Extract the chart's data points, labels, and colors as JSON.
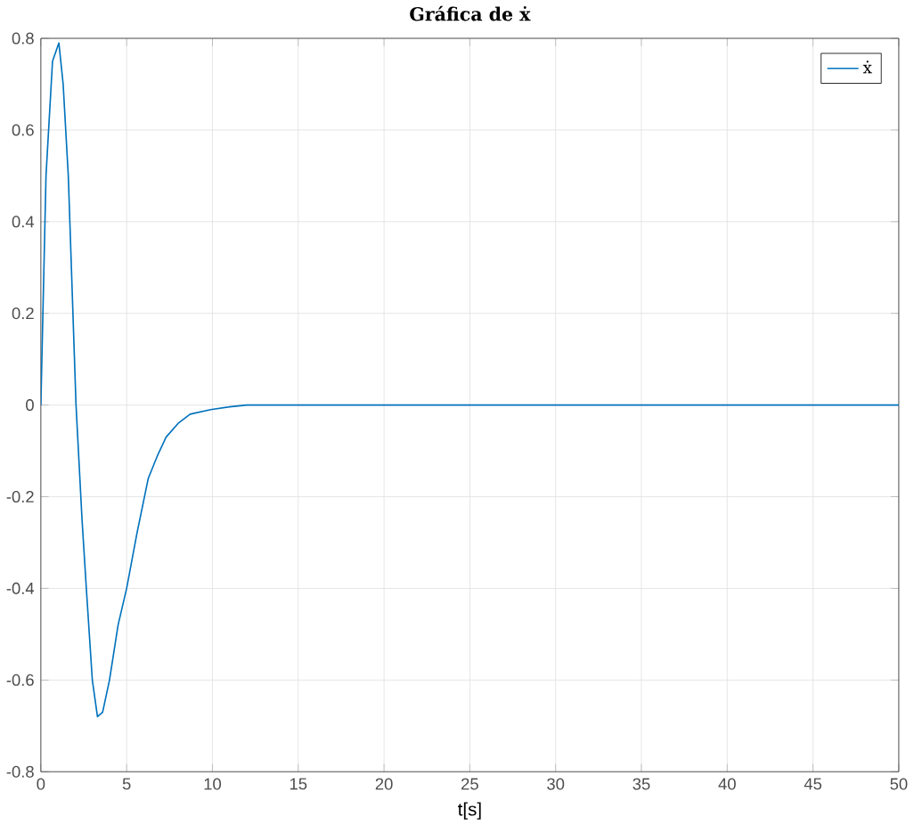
{
  "chart_data": {
    "type": "line",
    "title": "Gráfica de ẋ",
    "xlabel": "t[s]",
    "x": [
      0,
      0.3,
      0.68,
      1.05,
      1.3,
      1.6,
      2.05,
      2.4,
      2.65,
      3.0,
      3.3,
      3.6,
      4.0,
      4.5,
      5.0,
      5.6,
      6.26,
      6.8,
      7.3,
      8.0,
      8.7,
      9.9,
      11,
      12,
      15,
      20,
      30,
      40,
      50
    ],
    "series": [
      {
        "name": "ẋ",
        "color": "#0072bd",
        "values": [
          0,
          0.5,
          0.75,
          0.79,
          0.7,
          0.5,
          0,
          -0.25,
          -0.4,
          -0.6,
          -0.68,
          -0.67,
          -0.6,
          -0.48,
          -0.4,
          -0.28,
          -0.16,
          -0.11,
          -0.07,
          -0.04,
          -0.02,
          -0.01,
          -0.004,
          0,
          0,
          0,
          0,
          0,
          0
        ]
      }
    ],
    "xlim": [
      0,
      50
    ],
    "ylim": [
      -0.8,
      0.8
    ],
    "xticks": [
      0,
      5,
      10,
      15,
      20,
      25,
      30,
      35,
      40,
      45,
      50
    ],
    "yticks": [
      -0.8,
      -0.6,
      -0.4,
      -0.2,
      0,
      0.2,
      0.4,
      0.6,
      0.8
    ],
    "grid": true,
    "legend": "top right",
    "line_style": "solid",
    "marker": "none"
  }
}
